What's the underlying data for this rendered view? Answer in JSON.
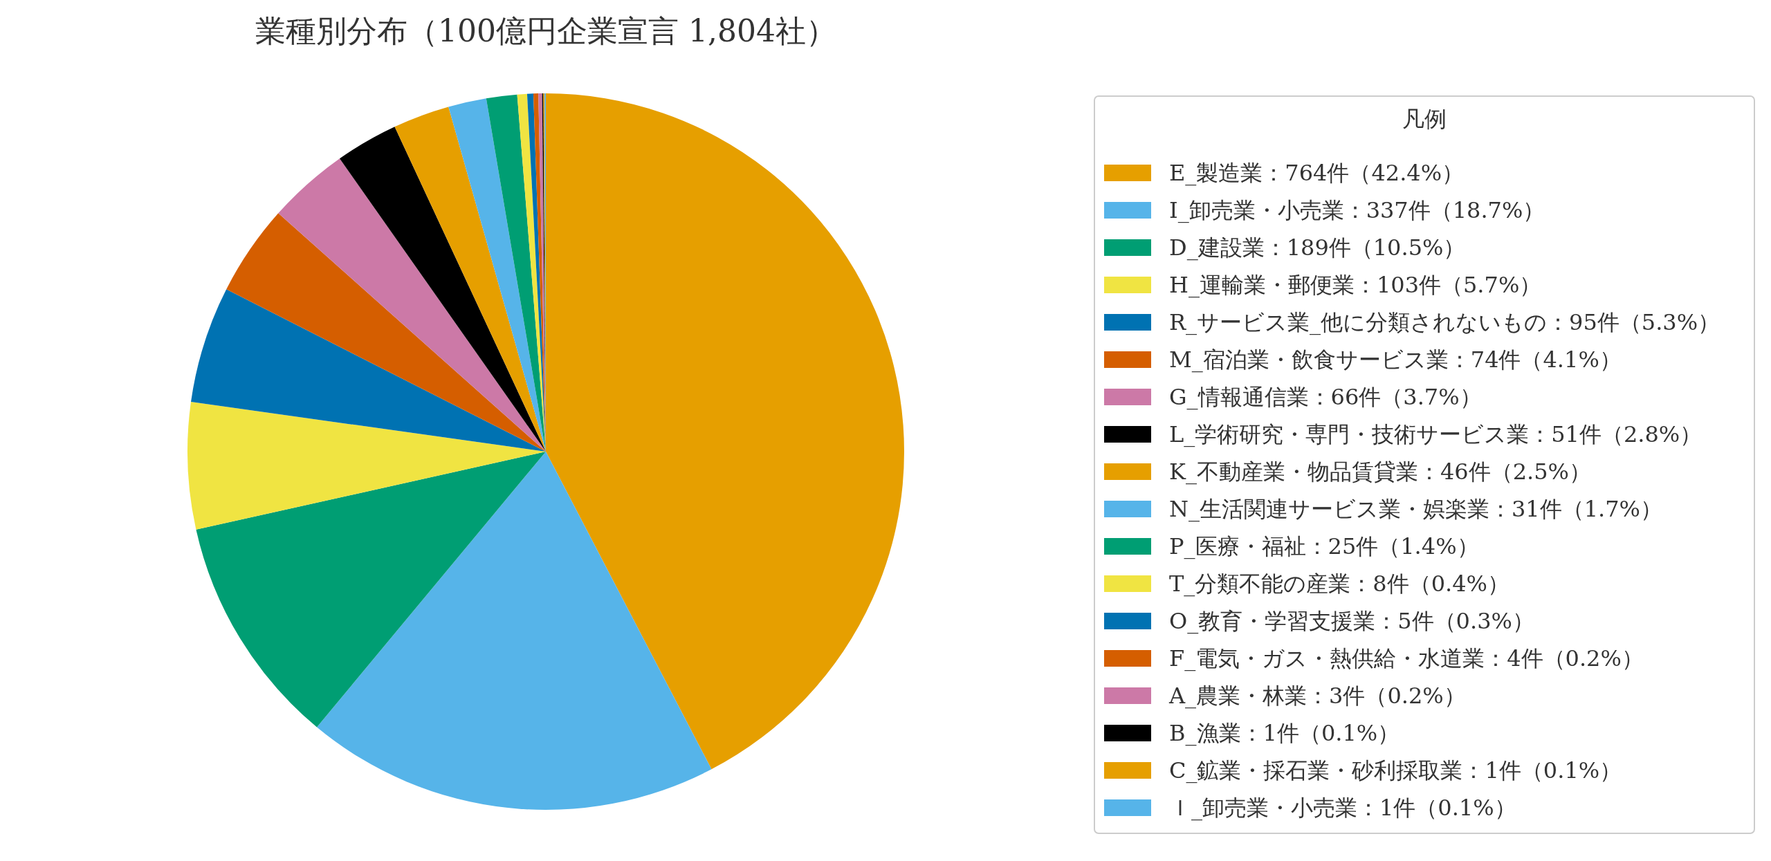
{
  "chart_data": {
    "type": "pie",
    "title": "業種別分布（100億円企業宣言 1,804社）",
    "legend_title": "凡例",
    "legend": "right",
    "categories": [
      "E_製造業：764件（42.4%）",
      "I_卸売業・小売業：337件（18.7%）",
      "D_建設業：189件（10.5%）",
      "H_運輸業・郵便業：103件（5.7%）",
      "R_サービス業_他に分類されないもの：95件（5.3%）",
      "M_宿泊業・飲食サービス業：74件（4.1%）",
      "G_情報通信業：66件（3.7%）",
      "L_学術研究・専門・技術サービス業：51件（2.8%）",
      "K_不動産業・物品賃貸業：46件（2.5%）",
      "N_生活関連サービス業・娯楽業：31件（1.7%）",
      "P_医療・福祉：25件（1.4%）",
      "T_分類不能の産業：8件（0.4%）",
      "O_教育・学習支援業：5件（0.3%）",
      "F_電気・ガス・熱供給・水道業：4件（0.2%）",
      "A_農業・林業：3件（0.2%）",
      "B_漁業：1件（0.1%）",
      "C_鉱業・採石業・砂利採取業：1件（0.1%）",
      "Ｉ_卸売業・小売業：1件（0.1%）"
    ],
    "values": [
      764,
      337,
      189,
      103,
      95,
      74,
      66,
      51,
      46,
      31,
      25,
      8,
      5,
      4,
      3,
      1,
      1,
      1
    ],
    "colors": [
      "#e69f00",
      "#56b4e9",
      "#009e73",
      "#f0e442",
      "#0072b2",
      "#d55e00",
      "#cc79a7",
      "#000000",
      "#e69f00",
      "#56b4e9",
      "#009e73",
      "#f0e442",
      "#0072b2",
      "#d55e00",
      "#cc79a7",
      "#000000",
      "#e69f00",
      "#56b4e9"
    ]
  }
}
